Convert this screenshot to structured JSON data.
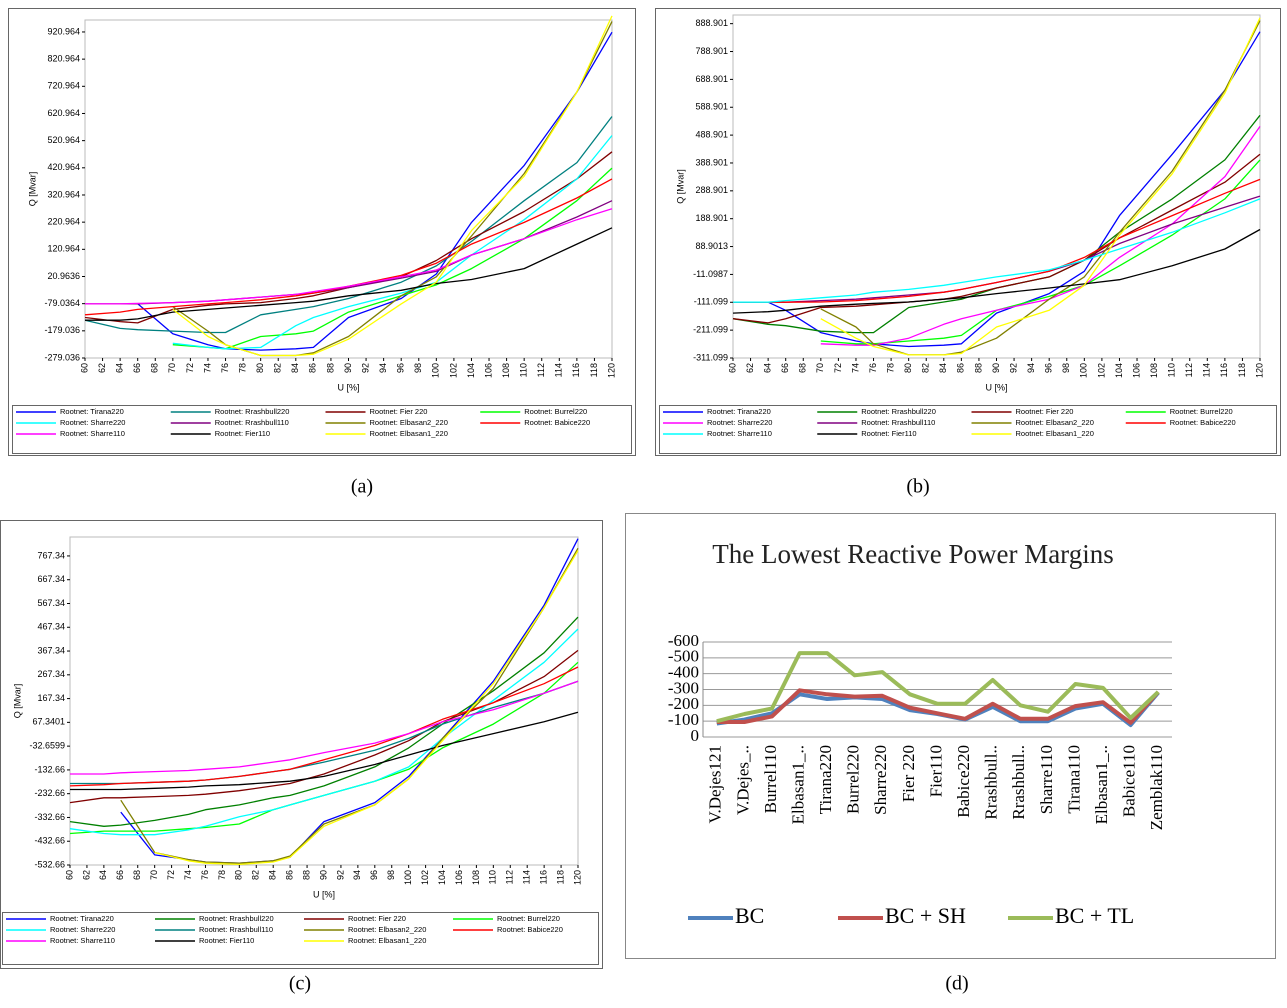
{
  "chart_data": [
    {
      "type": "line",
      "caption": "(a)",
      "y_label": "Q [Mvar]",
      "x_label": "U [%]",
      "legend": "bottom",
      "x": [
        60,
        64,
        66,
        70,
        74,
        76,
        80,
        84,
        86,
        90,
        96,
        100,
        104,
        110,
        116,
        120
      ],
      "xlim": [
        60,
        120
      ],
      "xticks": [
        60,
        62,
        64,
        66,
        68,
        70,
        72,
        74,
        76,
        78,
        80,
        82,
        84,
        86,
        88,
        90,
        92,
        94,
        96,
        98,
        100,
        102,
        104,
        106,
        108,
        110,
        112,
        114,
        116,
        118,
        120
      ],
      "ylim": [
        -279.036,
        965
      ],
      "yticks": [
        920.964,
        820.964,
        720.964,
        620.964,
        520.964,
        420.964,
        320.964,
        220.964,
        120.964,
        20.9636,
        -79.0364,
        -179.036,
        -279.036
      ],
      "series": [
        {
          "name": "Rootnet: Tirana220",
          "color": "#0000ff",
          "values": [
            null,
            null,
            -79,
            -190,
            -230,
            -245,
            -250,
            -245,
            -240,
            -130,
            -60,
            30,
            220,
            430,
            700,
            920
          ]
        },
        {
          "name": "Rootnet: Rrashbull220",
          "color": "#008080",
          "values": [
            -140,
            -170,
            -175,
            -180,
            -185,
            -185,
            -120,
            -100,
            -90,
            -60,
            0,
            60,
            150,
            300,
            440,
            610
          ]
        },
        {
          "name": "Rootnet: Fier 220",
          "color": "#800000",
          "values": [
            -130,
            -145,
            -150,
            -100,
            -85,
            -80,
            -75,
            -60,
            -50,
            -20,
            20,
            80,
            160,
            260,
            380,
            480
          ]
        },
        {
          "name": "Rootnet: Burrel220",
          "color": "#00ff00",
          "values": [
            null,
            null,
            null,
            -230,
            -240,
            -245,
            -200,
            -190,
            -180,
            -110,
            -50,
            -10,
            50,
            160,
            300,
            420
          ]
        },
        {
          "name": "Rootnet: Sharre220",
          "color": "#00ffff",
          "values": [
            null,
            null,
            null,
            -225,
            -240,
            -245,
            -240,
            -160,
            -130,
            -90,
            -40,
            0,
            100,
            230,
            380,
            540
          ]
        },
        {
          "name": "Rootnet: Rrashbull110",
          "color": "#800080",
          "values": [
            -80,
            -80,
            -80,
            -75,
            -70,
            -65,
            -55,
            -45,
            -40,
            -20,
            15,
            40,
            100,
            160,
            240,
            300
          ]
        },
        {
          "name": "Rootnet: Elbasan2_220",
          "color": "#808000",
          "values": [
            null,
            null,
            null,
            -90,
            -180,
            -230,
            -270,
            -270,
            -260,
            -200,
            -50,
            20,
            170,
            400,
            700,
            960
          ]
        },
        {
          "name": "Rootnet: Babice220",
          "color": "#ff0000",
          "values": [
            -120,
            -110,
            -100,
            -90,
            -80,
            -75,
            -65,
            -50,
            -40,
            -15,
            25,
            70,
            140,
            220,
            310,
            380
          ]
        },
        {
          "name": "Rootnet: Sharre110",
          "color": "#ff00ff",
          "values": [
            -80,
            -80,
            -78,
            -75,
            -70,
            -65,
            -55,
            -45,
            -35,
            -15,
            20,
            45,
            100,
            160,
            230,
            270
          ]
        },
        {
          "name": "Rootnet: Fier110",
          "color": "#000000",
          "values": [
            -140,
            -140,
            -135,
            -110,
            -100,
            -95,
            -85,
            -75,
            -70,
            -50,
            -30,
            -5,
            10,
            50,
            140,
            200
          ]
        },
        {
          "name": "Rootnet: Elbasan1_220",
          "color": "#ffff00",
          "values": [
            null,
            null,
            null,
            -100,
            -200,
            -230,
            -270,
            -270,
            -265,
            -210,
            -80,
            0,
            190,
            390,
            700,
            980
          ]
        }
      ]
    },
    {
      "type": "line",
      "caption": "(b)",
      "y_label": "Q [Mvar]",
      "x_label": "U [%]",
      "legend": "bottom",
      "x": [
        60,
        64,
        66,
        70,
        74,
        76,
        80,
        84,
        86,
        90,
        96,
        100,
        104,
        110,
        116,
        120
      ],
      "xlim": [
        60,
        120
      ],
      "xticks": [
        60,
        62,
        64,
        66,
        68,
        70,
        72,
        74,
        76,
        78,
        80,
        82,
        84,
        86,
        88,
        90,
        92,
        94,
        96,
        98,
        100,
        102,
        104,
        106,
        108,
        110,
        112,
        114,
        116,
        118,
        120
      ],
      "ylim": [
        -311.099,
        920
      ],
      "yticks": [
        888.901,
        788.901,
        688.901,
        588.901,
        488.901,
        388.901,
        288.901,
        188.901,
        88.9013,
        -11.0987,
        -111.099,
        -211.099,
        -311.099
      ],
      "series": [
        {
          "name": "Rootnet: Tirana220",
          "color": "#0000ff",
          "values": [
            null,
            -111,
            -140,
            -220,
            -250,
            -260,
            -270,
            -265,
            -260,
            -150,
            -80,
            0,
            200,
            420,
            650,
            860
          ]
        },
        {
          "name": "Rootnet: Rrashbull220",
          "color": "#008000",
          "values": [
            -170,
            -190,
            -195,
            -215,
            -220,
            -220,
            -130,
            -110,
            -100,
            -60,
            -20,
            40,
            140,
            260,
            400,
            560
          ]
        },
        {
          "name": "Rootnet: Fier 220",
          "color": "#800000",
          "values": [
            -170,
            -185,
            -170,
            -130,
            -125,
            -120,
            -110,
            -100,
            -90,
            -60,
            -20,
            40,
            120,
            220,
            320,
            420
          ]
        },
        {
          "name": "Rootnet: Burrel220",
          "color": "#00ff00",
          "values": [
            null,
            null,
            null,
            -250,
            -260,
            -260,
            -250,
            -240,
            -230,
            -140,
            -90,
            -50,
            20,
            130,
            260,
            400
          ]
        },
        {
          "name": "Rootnet: Sharre220",
          "color": "#ff00ff",
          "values": [
            null,
            null,
            null,
            -260,
            -265,
            -265,
            -240,
            -190,
            -170,
            -140,
            -100,
            -50,
            50,
            170,
            340,
            520
          ]
        },
        {
          "name": "Rootnet: Rrashbull110",
          "color": "#800080",
          "values": [
            -111,
            -111,
            -111,
            -105,
            -100,
            -95,
            -85,
            -75,
            -65,
            -40,
            0,
            40,
            100,
            170,
            230,
            270
          ]
        },
        {
          "name": "Rootnet: Elbasan2_220",
          "color": "#808000",
          "values": [
            null,
            null,
            null,
            -135,
            -200,
            -260,
            -300,
            -300,
            -290,
            -240,
            -100,
            -20,
            140,
            360,
            650,
            900
          ]
        },
        {
          "name": "Rootnet: Babice220",
          "color": "#ff0000",
          "values": [
            -111,
            -111,
            -111,
            -110,
            -105,
            -100,
            -90,
            -75,
            -65,
            -40,
            0,
            50,
            120,
            200,
            280,
            330
          ]
        },
        {
          "name": "Rootnet: Sharre110",
          "color": "#00ffff",
          "values": [
            -111,
            -111,
            -105,
            -95,
            -85,
            -75,
            -65,
            -50,
            -40,
            -20,
            5,
            40,
            80,
            140,
            210,
            260
          ]
        },
        {
          "name": "Rootnet: Fier110",
          "color": "#000000",
          "values": [
            -150,
            -145,
            -140,
            -125,
            -118,
            -115,
            -110,
            -100,
            -95,
            -80,
            -60,
            -45,
            -30,
            20,
            80,
            150
          ]
        },
        {
          "name": "Rootnet: Elbasan1_220",
          "color": "#ffff00",
          "values": [
            null,
            null,
            null,
            -170,
            -240,
            -270,
            -300,
            -300,
            -295,
            -200,
            -140,
            -50,
            130,
            350,
            640,
            910
          ]
        }
      ]
    },
    {
      "type": "line",
      "caption": "(c)",
      "y_label": "Q [Mvar]",
      "x_label": "U [%]",
      "legend": "bottom",
      "x": [
        60,
        64,
        66,
        70,
        74,
        76,
        80,
        84,
        86,
        90,
        96,
        100,
        104,
        110,
        116,
        120
      ],
      "xlim": [
        60,
        120
      ],
      "xticks": [
        60,
        62,
        64,
        66,
        68,
        70,
        72,
        74,
        76,
        78,
        80,
        82,
        84,
        86,
        88,
        90,
        92,
        94,
        96,
        98,
        100,
        102,
        104,
        106,
        108,
        110,
        112,
        114,
        116,
        118,
        120
      ],
      "ylim": [
        -532.66,
        847
      ],
      "yticks": [
        767.34,
        667.34,
        567.34,
        467.34,
        367.34,
        267.34,
        167.34,
        67.3401,
        -32.6599,
        -132.66,
        -232.66,
        -332.66,
        -432.66,
        -532.66
      ],
      "series": [
        {
          "name": "Rootnet: Tirana220",
          "color": "#0000ff",
          "values": [
            null,
            null,
            -310,
            -490,
            -510,
            -520,
            -525,
            -515,
            -500,
            -350,
            -270,
            -160,
            0,
            240,
            560,
            840
          ]
        },
        {
          "name": "Rootnet: Rrashbull220",
          "color": "#008000",
          "values": [
            -350,
            -370,
            -365,
            -345,
            -320,
            -300,
            -280,
            -250,
            -240,
            -200,
            -120,
            -40,
            60,
            200,
            360,
            510
          ]
        },
        {
          "name": "Rootnet: Fier 220",
          "color": "#800000",
          "values": [
            -270,
            -250,
            -250,
            -245,
            -240,
            -235,
            -220,
            -200,
            -190,
            -150,
            -70,
            -10,
            70,
            150,
            260,
            370
          ]
        },
        {
          "name": "Rootnet: Burrel220",
          "color": "#00ff00",
          "values": [
            -400,
            -390,
            -390,
            -390,
            -380,
            -375,
            -360,
            -300,
            -280,
            -240,
            -180,
            -130,
            -40,
            60,
            190,
            320
          ]
        },
        {
          "name": "Rootnet: Sharre220",
          "color": "#00ffff",
          "values": [
            -380,
            -400,
            -405,
            -405,
            -385,
            -370,
            -330,
            -300,
            -280,
            -240,
            -180,
            -120,
            0,
            160,
            320,
            460
          ]
        },
        {
          "name": "Rootnet: Rrashbull110",
          "color": "#008080",
          "values": [
            -190,
            -190,
            -190,
            -185,
            -180,
            -175,
            -160,
            -140,
            -130,
            -100,
            -50,
            0,
            60,
            130,
            190,
            240
          ]
        },
        {
          "name": "Rootnet: Elbasan2_220",
          "color": "#808000",
          "values": [
            null,
            null,
            -260,
            -480,
            -510,
            -520,
            -525,
            -515,
            -495,
            -360,
            -280,
            -170,
            0,
            210,
            550,
            800
          ]
        },
        {
          "name": "Rootnet: Babice220",
          "color": "#ff0000",
          "values": [
            -200,
            -195,
            -190,
            -185,
            -180,
            -175,
            -160,
            -140,
            -130,
            -90,
            -30,
            20,
            80,
            150,
            230,
            300
          ]
        },
        {
          "name": "Rootnet: Sharre110",
          "color": "#ff00ff",
          "values": [
            -150,
            -150,
            -145,
            -140,
            -135,
            -130,
            -120,
            -100,
            -90,
            -60,
            -20,
            20,
            70,
            120,
            190,
            240
          ]
        },
        {
          "name": "Rootnet: Fier110",
          "color": "#000000",
          "values": [
            -215,
            -215,
            -215,
            -210,
            -205,
            -200,
            -195,
            -185,
            -180,
            -160,
            -110,
            -70,
            -30,
            20,
            70,
            110
          ]
        },
        {
          "name": "Rootnet: Elbasan1_220",
          "color": "#ffff00",
          "values": [
            null,
            null,
            null,
            -480,
            -515,
            -525,
            -530,
            -520,
            -500,
            -370,
            -280,
            -170,
            -10,
            230,
            550,
            790
          ]
        }
      ]
    },
    {
      "type": "line",
      "caption": "(d)",
      "title": "The Lowest Reactive Power Margins",
      "legend": "bottom",
      "grid": true,
      "categories": [
        "V.Dejes121",
        "V.Dejes_..",
        "Burrel110",
        "Elbasan1_..",
        "Tirana220",
        "Burrel220",
        "Sharre220",
        "Fier 220",
        "Fier110",
        "Babice220",
        "Rrashbull..",
        "Rrashbull..",
        "Sharre110",
        "Tirana110",
        "Elbasan1_..",
        "Babice110",
        "Zemblak110"
      ],
      "ylim": [
        0,
        600
      ],
      "yticks": [
        {
          "value": 600,
          "label": "-600"
        },
        {
          "value": 500,
          "label": "-500"
        },
        {
          "value": 400,
          "label": "-400"
        },
        {
          "value": 300,
          "label": "-300"
        },
        {
          "value": 200,
          "label": "-200"
        },
        {
          "value": 100,
          "label": "-100"
        },
        0
      ],
      "series": [
        {
          "name": "BC",
          "color": "#4f81bd",
          "values": [
            85,
            110,
            150,
            270,
            240,
            250,
            240,
            170,
            145,
            110,
            190,
            100,
            100,
            180,
            210,
            75,
            280
          ]
        },
        {
          "name": "BC + SH",
          "color": "#c0504d",
          "values": [
            95,
            95,
            130,
            295,
            270,
            255,
            260,
            185,
            150,
            115,
            210,
            115,
            115,
            195,
            220,
            90,
            285
          ]
        },
        {
          "name": "BC + TL",
          "color": "#9bbb59",
          "values": [
            100,
            145,
            180,
            530,
            530,
            390,
            410,
            270,
            210,
            210,
            360,
            200,
            160,
            335,
            310,
            120,
            285
          ]
        }
      ]
    }
  ]
}
